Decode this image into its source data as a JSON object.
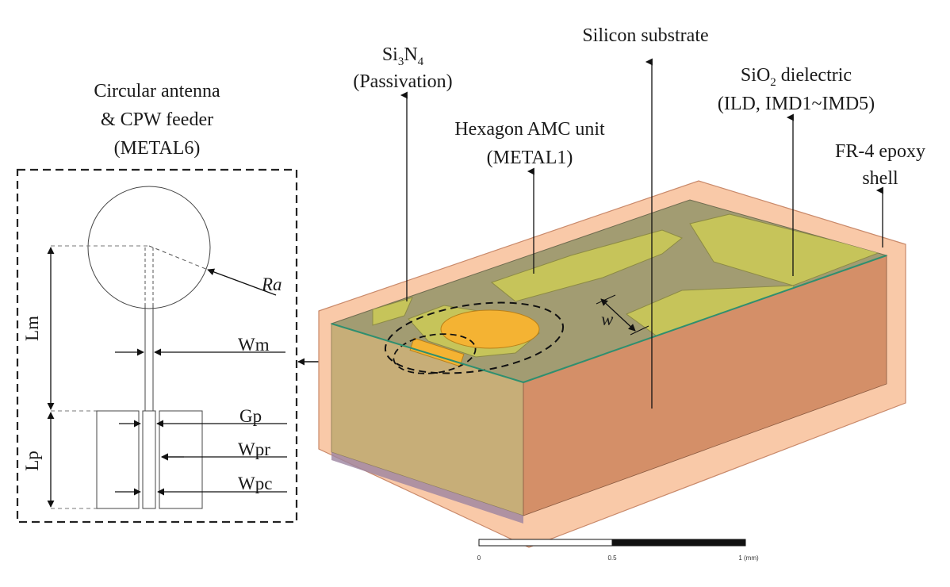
{
  "labels": {
    "antenna_line1": "Circular antenna",
    "antenna_line2": "& CPW feeder",
    "antenna_line3": "(METAL6)",
    "sin_line1_a": "Si",
    "sin_line1_b": "3",
    "sin_line1_c": "N",
    "sin_line1_d": "4",
    "sin_line2": "(Passivation)",
    "silicon": "Silicon substrate",
    "hex_line1": "Hexagon AMC unit",
    "hex_line2": "(METAL1)",
    "sio2_line1_a": "SiO",
    "sio2_line1_b": "2",
    "sio2_line1_c": " dielectric",
    "sio2_line2": "(ILD, IMD1~IMD5)",
    "fr4_line1": "FR-4 epoxy",
    "fr4_line2": "shell",
    "w": "w"
  },
  "dimensions": {
    "ra": "Ra",
    "lm": "Lm",
    "wm": "Wm",
    "lp": "Lp",
    "gp": "Gp",
    "wpr": "Wpr",
    "wpc": "Wpc"
  },
  "scale_bar": {
    "tick0": "0",
    "tick1": "0.5",
    "tick2": "1 (mm)"
  },
  "colors": {
    "fr4_shell": "#f9c9a8",
    "silicon_front": "#c7ae78",
    "silicon_right": "#d48f68",
    "silicon_bottom": "#9c84a0",
    "top_surface": "#a29c72",
    "amc_patch": "#c6c45a",
    "antenna_patch": "#f4b333",
    "passivation_edge": "#2f8f6f"
  }
}
